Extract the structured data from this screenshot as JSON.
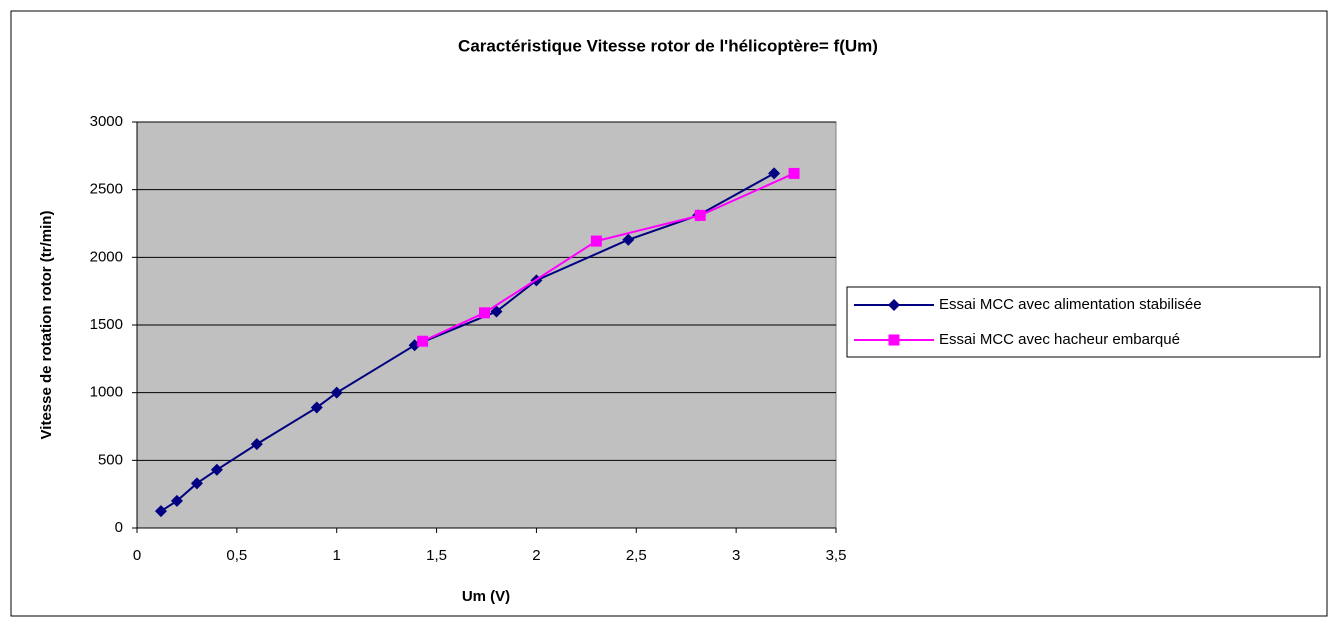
{
  "chart_data": {
    "type": "scatter",
    "title": "Caractéristique Vitesse rotor de l'hélicoptère= f(Um)",
    "x_label": "Um (V)",
    "y_label": "Vitesse  de rotation rotor (tr/min)",
    "xlim": [
      0,
      3.5
    ],
    "xticks": [
      0,
      {
        "value": 0.5,
        "label": "0,5"
      },
      1,
      {
        "value": 1.5,
        "label": "1,5"
      },
      2,
      {
        "value": 2.5,
        "label": "2,5"
      },
      3,
      {
        "value": 3.5,
        "label": "3,5"
      }
    ],
    "ylim": [
      0,
      3000
    ],
    "yticks": [
      0,
      500,
      1000,
      1500,
      2000,
      2500,
      3000
    ],
    "grid": true,
    "legend": "right",
    "series": [
      {
        "name": "Essai MCC avec alimentation stabilisée",
        "color": "#000080",
        "marker": "diamond",
        "x": [
          0.12,
          0.2,
          0.3,
          0.4,
          0.6,
          0.9,
          1.0,
          1.39,
          1.8,
          2.0,
          2.46,
          2.81,
          3.19
        ],
        "values": [
          125,
          200,
          330,
          430,
          620,
          890,
          1000,
          1350,
          1600,
          1830,
          2130,
          2310,
          2620
        ]
      },
      {
        "name": "Essai MCC avec hacheur embarqué",
        "color": "#ff00ff",
        "marker": "square",
        "x": [
          1.43,
          1.74,
          2.3,
          2.82,
          3.29
        ],
        "values": [
          1380,
          1590,
          2120,
          2310,
          2620
        ]
      }
    ]
  }
}
